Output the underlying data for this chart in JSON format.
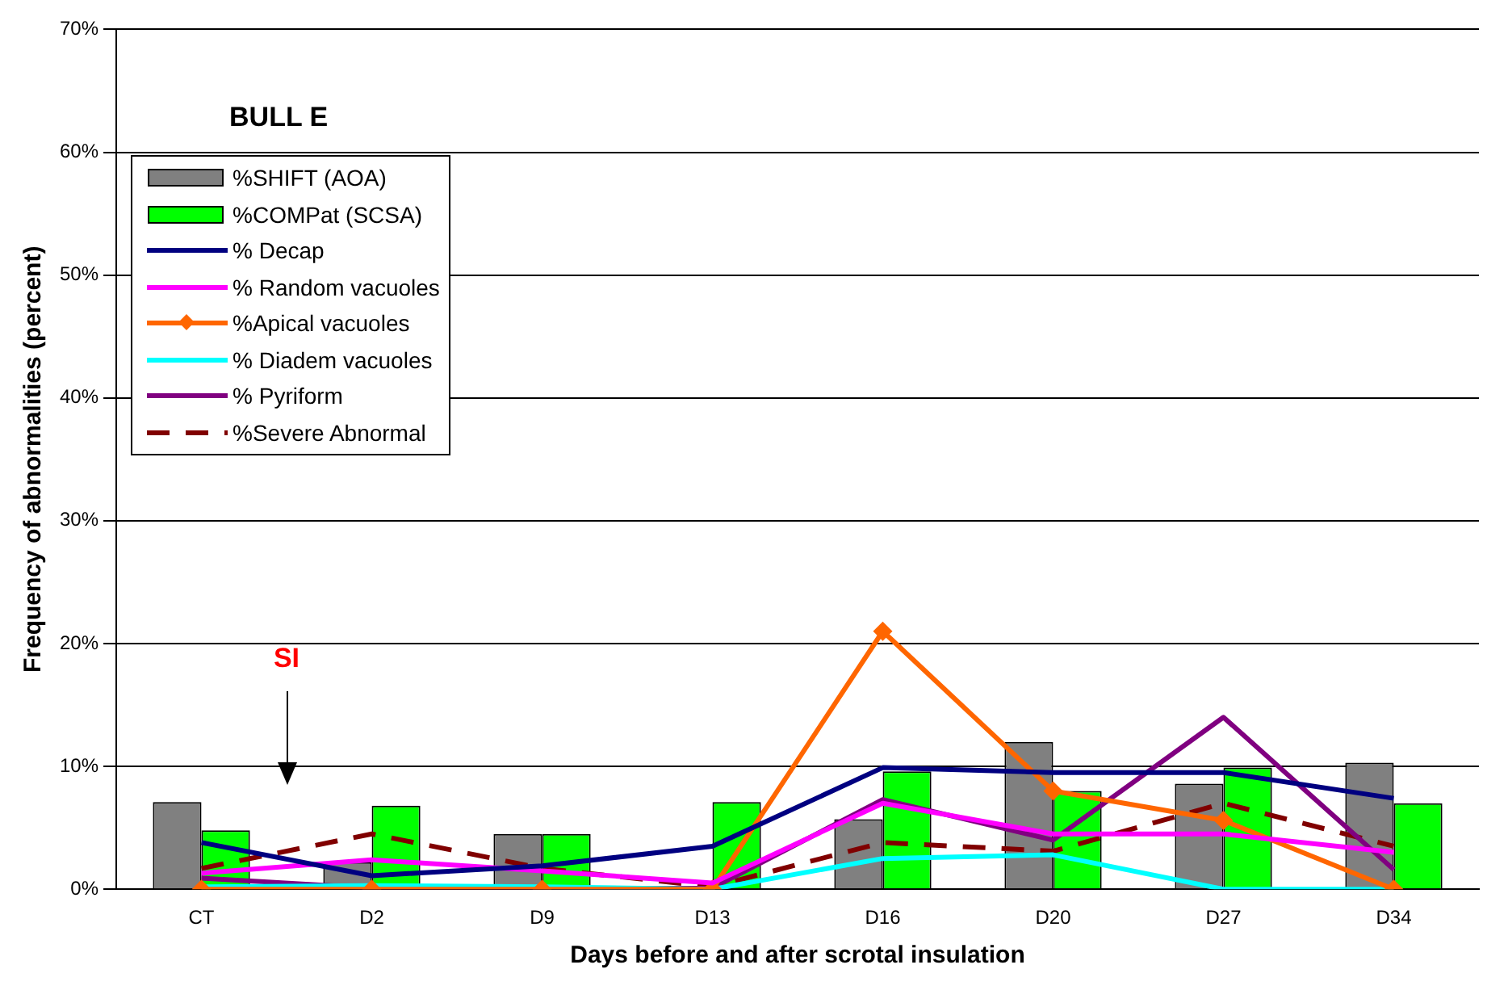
{
  "chart_data": {
    "type": "bar",
    "title": "BULL E",
    "xlabel": "Days before and after scrotal insulation",
    "ylabel": "Frequency of abnormalities (percent)",
    "categories": [
      "CT",
      "D2",
      "D9",
      "D13",
      "D16",
      "D20",
      "D27",
      "D34"
    ],
    "series": [
      {
        "name": "%SHIFT (AOA)",
        "color": "#808080",
        "values": [
          7.1,
          2.2,
          4.5,
          0,
          5.7,
          12.0,
          8.6,
          10.3
        ]
      },
      {
        "name": "%COMPat (SCSA)",
        "color": "#00ff00",
        "values": [
          4.8,
          6.8,
          4.5,
          7.1,
          9.6,
          8.0,
          9.9,
          7.0
        ]
      },
      {
        "name": "% Decap",
        "type": "line",
        "color": "#000080",
        "values": [
          3.8,
          1.1,
          1.9,
          3.5,
          9.9,
          9.5,
          9.5,
          7.4
        ]
      },
      {
        "name": "% Random vacuoles",
        "type": "line",
        "color": "#ff00ff",
        "values": [
          1.3,
          2.4,
          1.5,
          0.5,
          7.0,
          4.5,
          4.5,
          3.0
        ]
      },
      {
        "name": "%Apical vacuoles",
        "type": "line",
        "color": "#ff6600",
        "marker": "diamond",
        "values": [
          0,
          0,
          0,
          0,
          21.0,
          8.0,
          5.6,
          0
        ]
      },
      {
        "name": "% Diadem vacuoles",
        "type": "line",
        "color": "#00ffff",
        "values": [
          0.2,
          0.3,
          0.2,
          0,
          2.5,
          2.8,
          0,
          0
        ]
      },
      {
        "name": "% Pyriform",
        "type": "line",
        "color": "#800080",
        "values": [
          0.9,
          0.1,
          0,
          0.1,
          7.3,
          4.0,
          14.0,
          1.6
        ]
      },
      {
        "name": "%Severe Abnormal",
        "type": "line",
        "color": "#800000",
        "line_style": "dashed",
        "values": [
          1.7,
          4.5,
          1.7,
          0.2,
          3.8,
          3.1,
          7.0,
          3.5
        ]
      }
    ],
    "ylim": [
      0,
      70
    ],
    "yticks": [
      {
        "value": 0,
        "label": "0%"
      },
      {
        "value": 10,
        "label": "10%"
      },
      {
        "value": 20,
        "label": "20%"
      },
      {
        "value": 30,
        "label": "30%"
      },
      {
        "value": 40,
        "label": "40%"
      },
      {
        "value": 50,
        "label": "50%"
      },
      {
        "value": 60,
        "label": "60%"
      },
      {
        "value": 70,
        "label": "70%"
      }
    ],
    "grid": "y",
    "legend": "top left",
    "marker": "none",
    "annotations": [
      "SI"
    ]
  }
}
